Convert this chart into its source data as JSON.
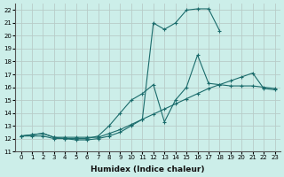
{
  "xlabel": "Humidex (Indice chaleur)",
  "bg_color": "#cceee9",
  "grid_color": "#b8ccc8",
  "line_color": "#1a6b6b",
  "xlim": [
    -0.5,
    23.5
  ],
  "ylim": [
    11,
    22.5
  ],
  "xticks": [
    0,
    1,
    2,
    3,
    4,
    5,
    6,
    7,
    8,
    9,
    10,
    11,
    12,
    13,
    14,
    15,
    16,
    17,
    18,
    19,
    20,
    21,
    22,
    23
  ],
  "yticks": [
    11,
    12,
    13,
    14,
    15,
    16,
    17,
    18,
    19,
    20,
    21,
    22
  ],
  "curve_top_x": [
    0,
    1,
    2,
    3,
    4,
    5,
    6,
    7,
    8,
    9,
    10,
    11,
    12,
    13,
    14,
    15,
    16,
    17,
    18
  ],
  "curve_top_y": [
    12.2,
    12.2,
    12.2,
    12.0,
    12.0,
    11.9,
    11.9,
    12.0,
    12.2,
    12.5,
    13.0,
    13.5,
    21.0,
    20.5,
    21.0,
    22.0,
    22.1,
    22.1,
    20.4
  ],
  "curve_mid_x": [
    0,
    1,
    2,
    3,
    4,
    5,
    6,
    7,
    8,
    9,
    10,
    11,
    12,
    13,
    14,
    15,
    16,
    17,
    18,
    19,
    20,
    21,
    22,
    23
  ],
  "curve_mid_y": [
    12.2,
    12.3,
    12.4,
    12.1,
    12.0,
    12.0,
    12.0,
    12.2,
    13.0,
    14.0,
    15.0,
    15.5,
    16.2,
    13.3,
    15.0,
    16.0,
    18.5,
    16.3,
    16.2,
    16.1,
    16.1,
    16.1,
    16.0,
    15.9
  ],
  "curve_low_x": [
    0,
    1,
    2,
    3,
    4,
    5,
    6,
    7,
    8,
    9,
    10,
    11,
    12,
    13,
    14,
    15,
    16,
    17,
    18,
    19,
    20,
    21,
    22,
    23
  ],
  "curve_low_y": [
    12.2,
    12.3,
    12.4,
    12.1,
    12.1,
    12.1,
    12.1,
    12.1,
    12.4,
    12.7,
    13.1,
    13.5,
    13.9,
    14.3,
    14.7,
    15.1,
    15.5,
    15.9,
    16.2,
    16.5,
    16.8,
    17.1,
    15.9,
    15.8
  ]
}
